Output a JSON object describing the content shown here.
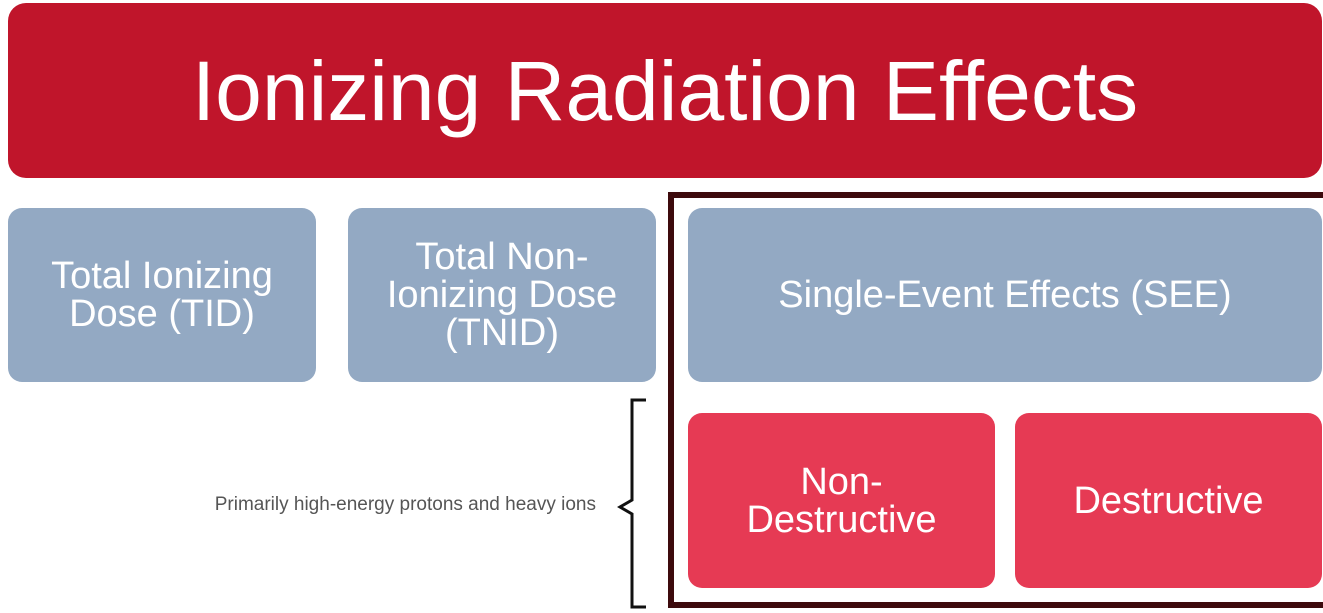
{
  "title": "Ionizing Radiation Effects",
  "boxes": [
    {
      "lines": [
        "Total Ionizing",
        "Dose (TID)"
      ]
    },
    {
      "lines": [
        "Total Non-",
        "Ionizing Dose",
        "(TNID)"
      ]
    },
    {
      "lines": [
        "Single-Event Effects (SEE)"
      ]
    },
    {
      "lines": [
        "Non-",
        "Destructive"
      ]
    },
    {
      "lines": [
        "Destructive"
      ]
    }
  ],
  "note": "Primarily high-energy protons and heavy ions"
}
